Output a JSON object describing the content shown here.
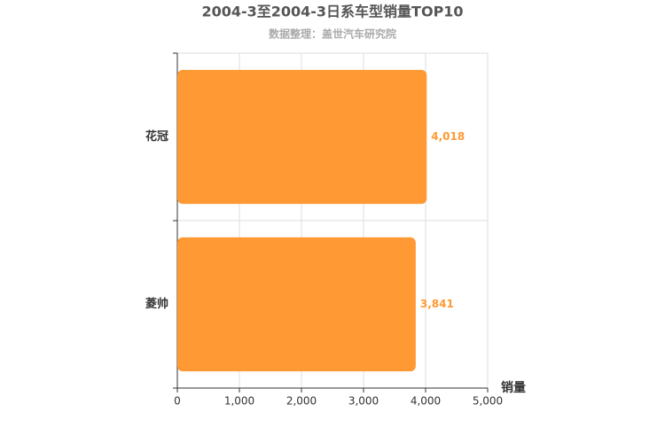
{
  "chart_data": {
    "type": "bar",
    "orientation": "horizontal",
    "title": "2004-3至2004-3日系车型销量TOP10",
    "subtitle": "数据整理：盖世汽车研究院",
    "x_label": "销量",
    "categories": [
      "花冠",
      "菱帅"
    ],
    "values": [
      4018,
      3841
    ],
    "value_labels": [
      "4,018",
      "3,841"
    ],
    "color": "#ff9933",
    "xlim": [
      0,
      5000
    ],
    "xticks": [
      0,
      {
        "value": 1000,
        "label": "1,000"
      },
      {
        "value": 2000,
        "label": "2,000"
      },
      {
        "value": 3000,
        "label": "3,000"
      },
      {
        "value": 4000,
        "label": "4,000"
      },
      {
        "value": 5000,
        "label": "5,000"
      }
    ],
    "grid": true
  }
}
